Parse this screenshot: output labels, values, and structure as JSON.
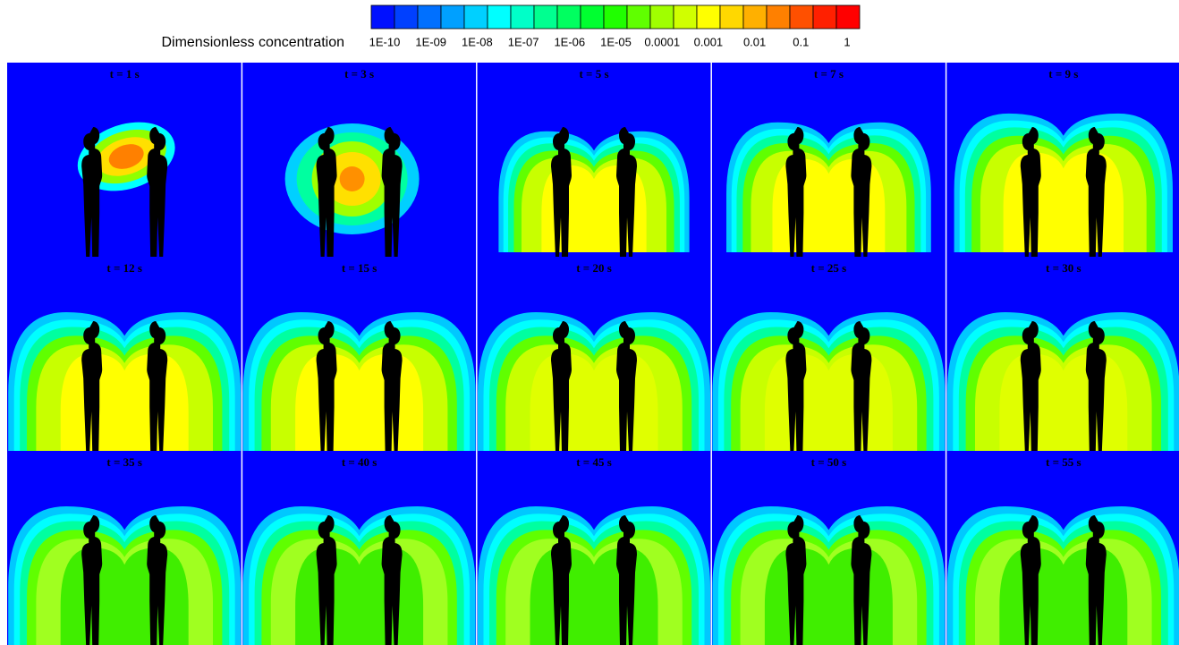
{
  "legend": {
    "title": "Dimensionless concentration",
    "ticks": [
      "1E-10",
      "1E-09",
      "1E-08",
      "1E-07",
      "1E-06",
      "1E-05",
      "0.0001",
      "0.001",
      "0.01",
      "0.1",
      "1"
    ]
  },
  "panels": [
    {
      "title": "t = 1 s"
    },
    {
      "title": "t = 3 s"
    },
    {
      "title": "t = 5 s"
    },
    {
      "title": "t = 7 s"
    },
    {
      "title": "t = 9 s"
    },
    {
      "title": "t = 12 s"
    },
    {
      "title": "t = 15 s"
    },
    {
      "title": "t = 20 s"
    },
    {
      "title": "t = 25 s"
    },
    {
      "title": "t = 30 s"
    },
    {
      "title": "t = 35 s"
    },
    {
      "title": "t = 40 s"
    },
    {
      "title": "t = 45 s"
    },
    {
      "title": "t = 50 s"
    },
    {
      "title": "t = 55 s"
    }
  ]
}
